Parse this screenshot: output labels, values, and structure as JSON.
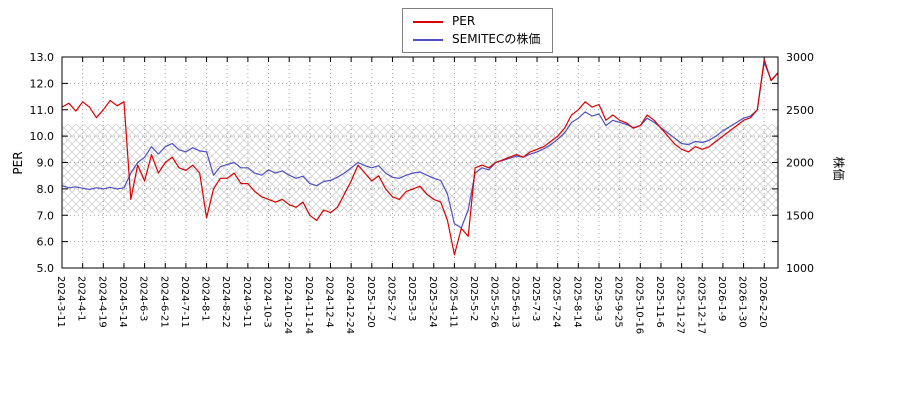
{
  "chart": {
    "legend_position": "top-center",
    "grid": true
  },
  "chart_data": {
    "type": "line",
    "title": "",
    "left_axis": {
      "label": "PER",
      "min": 5.0,
      "max": 13.0,
      "ticks": [
        5.0,
        6.0,
        7.0,
        8.0,
        9.0,
        10.0,
        11.0,
        12.0,
        13.0
      ]
    },
    "right_axis": {
      "label": "株価",
      "min": 1000,
      "max": 3000,
      "ticks": [
        1000,
        1500,
        2000,
        2500,
        3000
      ]
    },
    "band": {
      "axis": "left",
      "from": 7.1,
      "to": 10.45,
      "style": "crosshatch",
      "color": "#c9c9c9"
    },
    "points_per_tick": 3,
    "x_tick_labels": [
      "2024-3-11",
      "2024-4-1",
      "2024-4-19",
      "2024-5-14",
      "2024-6-3",
      "2024-6-21",
      "2024-7-11",
      "2024-8-1",
      "2024-8-22",
      "2024-9-11",
      "2024-10-3",
      "2024-10-24",
      "2024-11-14",
      "2024-12-4",
      "2024-12-24",
      "2025-1-20",
      "2025-2-7",
      "2025-3-3",
      "2025-3-24",
      "2025-4-11",
      "2025-5-2",
      "2025-5-26",
      "2025-6-13",
      "2025-7-3",
      "2025-7-24",
      "2025-8-14",
      "2025-9-3",
      "2025-9-25",
      "2025-10-16",
      "2025-11-6",
      "2025-11-27",
      "2025-12-17",
      "2026-1-9",
      "2026-1-30",
      "2026-2-20"
    ],
    "series": [
      {
        "name": "PER",
        "axis": "left",
        "color": "#dc0000",
        "values": [
          11.1,
          11.25,
          10.95,
          11.3,
          11.1,
          10.7,
          11.0,
          11.35,
          11.15,
          11.3,
          7.6,
          8.9,
          8.3,
          9.3,
          8.6,
          9.0,
          9.2,
          8.8,
          8.7,
          8.9,
          8.6,
          6.9,
          8.0,
          8.4,
          8.4,
          8.6,
          8.2,
          8.2,
          7.9,
          7.7,
          7.6,
          7.5,
          7.6,
          7.4,
          7.3,
          7.5,
          7.0,
          6.8,
          7.2,
          7.1,
          7.3,
          7.8,
          8.3,
          8.9,
          8.6,
          8.3,
          8.5,
          8.0,
          7.7,
          7.6,
          7.9,
          8.0,
          8.1,
          7.8,
          7.6,
          7.5,
          6.8,
          5.5,
          6.5,
          6.2,
          8.8,
          8.9,
          8.8,
          9.0,
          9.1,
          9.2,
          9.3,
          9.2,
          9.4,
          9.5,
          9.6,
          9.8,
          10.0,
          10.3,
          10.8,
          11.0,
          11.3,
          11.1,
          11.2,
          10.6,
          10.8,
          10.6,
          10.5,
          10.3,
          10.4,
          10.8,
          10.6,
          10.3,
          10.0,
          9.7,
          9.5,
          9.4,
          9.6,
          9.5,
          9.6,
          9.8,
          10.0,
          10.2,
          10.4,
          10.6,
          10.7,
          11.0,
          12.9,
          12.1,
          12.4
        ]
      },
      {
        "name": "SEMITECの株価",
        "axis": "right",
        "color": "#5050c0",
        "values": [
          1780,
          1760,
          1770,
          1755,
          1745,
          1760,
          1750,
          1765,
          1750,
          1760,
          1900,
          2000,
          2050,
          2150,
          2080,
          2150,
          2180,
          2120,
          2100,
          2140,
          2110,
          2100,
          1880,
          1960,
          1980,
          2000,
          1950,
          1950,
          1900,
          1880,
          1930,
          1900,
          1920,
          1880,
          1850,
          1870,
          1800,
          1780,
          1820,
          1830,
          1860,
          1900,
          1950,
          2000,
          1970,
          1950,
          1970,
          1900,
          1860,
          1850,
          1880,
          1900,
          1910,
          1880,
          1850,
          1830,
          1700,
          1420,
          1380,
          1550,
          1900,
          1950,
          1930,
          2000,
          2020,
          2040,
          2060,
          2050,
          2080,
          2100,
          2130,
          2170,
          2220,
          2280,
          2380,
          2420,
          2480,
          2440,
          2460,
          2350,
          2400,
          2380,
          2360,
          2330,
          2350,
          2420,
          2380,
          2330,
          2280,
          2230,
          2180,
          2170,
          2200,
          2190,
          2210,
          2250,
          2300,
          2340,
          2380,
          2420,
          2440,
          2500,
          2950,
          2780,
          2850
        ]
      }
    ]
  }
}
